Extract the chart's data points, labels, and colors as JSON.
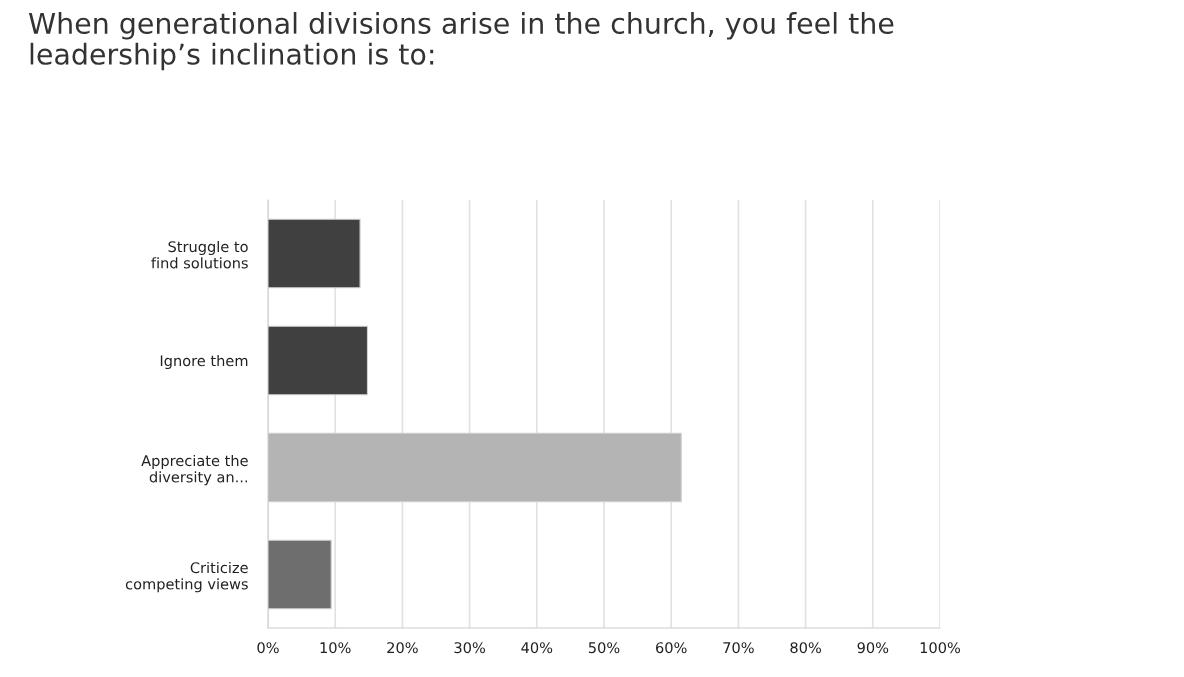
{
  "chart_data": {
    "type": "bar",
    "orientation": "horizontal",
    "title": "When generational divisions arise in the church, you feel the\nleadership’s inclination is to:",
    "categories": [
      "Struggle to\nfind solutions",
      "Ignore them",
      "Appreciate the\ndiversity an...",
      "Criticize\ncompeting views"
    ],
    "values": [
      13.7,
      14.8,
      61.5,
      9.4
    ],
    "colors": [
      "#404040",
      "#404040",
      "#b4b4b4",
      "#6e6e6e"
    ],
    "xlim": [
      0,
      100
    ],
    "xticks": [
      {
        "value": 0,
        "label": "0%"
      },
      {
        "value": 10,
        "label": "10%"
      },
      {
        "value": 20,
        "label": "20%"
      },
      {
        "value": 30,
        "label": "30%"
      },
      {
        "value": 40,
        "label": "40%"
      },
      {
        "value": 50,
        "label": "50%"
      },
      {
        "value": 60,
        "label": "60%"
      },
      {
        "value": 70,
        "label": "70%"
      },
      {
        "value": 80,
        "label": "80%"
      },
      {
        "value": 90,
        "label": "90%"
      },
      {
        "value": 100,
        "label": "100%"
      }
    ],
    "grid": "x",
    "legend": false
  }
}
